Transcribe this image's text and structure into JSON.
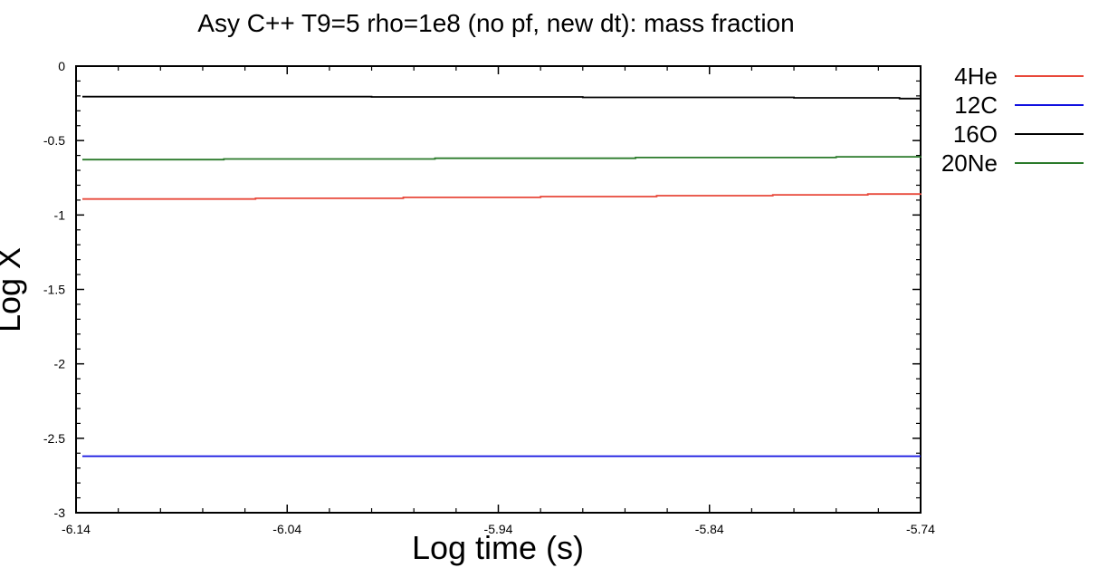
{
  "chart_data": {
    "type": "line",
    "title": "Asy C++ T9=5 rho=1e8 (no pf, new dt): mass fraction",
    "xlabel": "Log time (s)",
    "ylabel": "Log X",
    "xlim": [
      -6.14,
      -5.74
    ],
    "ylim": [
      -3,
      0
    ],
    "xticks": [
      -6.14,
      -6.04,
      -5.94,
      -5.84,
      -5.74
    ],
    "xtick_labels": [
      "-6.14",
      "-6.04",
      "-5.94",
      "-5.84",
      "-5.74"
    ],
    "yticks": [
      0,
      -0.5,
      -1,
      -1.5,
      -2,
      -2.5,
      -3
    ],
    "ytick_labels": [
      "0",
      "-0.5",
      "-1",
      "-1.5",
      "-2",
      "-2.5",
      "-3"
    ],
    "grid": false,
    "legend_position": "right",
    "series": [
      {
        "name": "4He",
        "color": "#e8483a",
        "x": [
          -6.137,
          -6.055,
          -5.985,
          -5.92,
          -5.865,
          -5.81,
          -5.765,
          -5.74
        ],
        "y": [
          -0.893,
          -0.888,
          -0.882,
          -0.876,
          -0.87,
          -0.865,
          -0.859,
          -0.855
        ]
      },
      {
        "name": "12C",
        "color": "#1010e0",
        "x": [
          -6.137,
          -5.74
        ],
        "y": [
          -2.62,
          -2.62
        ]
      },
      {
        "name": "16O",
        "color": "#000000",
        "x": [
          -6.137,
          -6.0,
          -5.9,
          -5.8,
          -5.75,
          -5.74
        ],
        "y": [
          -0.205,
          -0.207,
          -0.21,
          -0.213,
          -0.218,
          -0.218
        ]
      },
      {
        "name": "20Ne",
        "color": "#2a7a2a",
        "x": [
          -6.137,
          -6.07,
          -5.97,
          -5.875,
          -5.78,
          -5.74
        ],
        "y": [
          -0.628,
          -0.624,
          -0.619,
          -0.614,
          -0.609,
          -0.607
        ]
      }
    ]
  }
}
